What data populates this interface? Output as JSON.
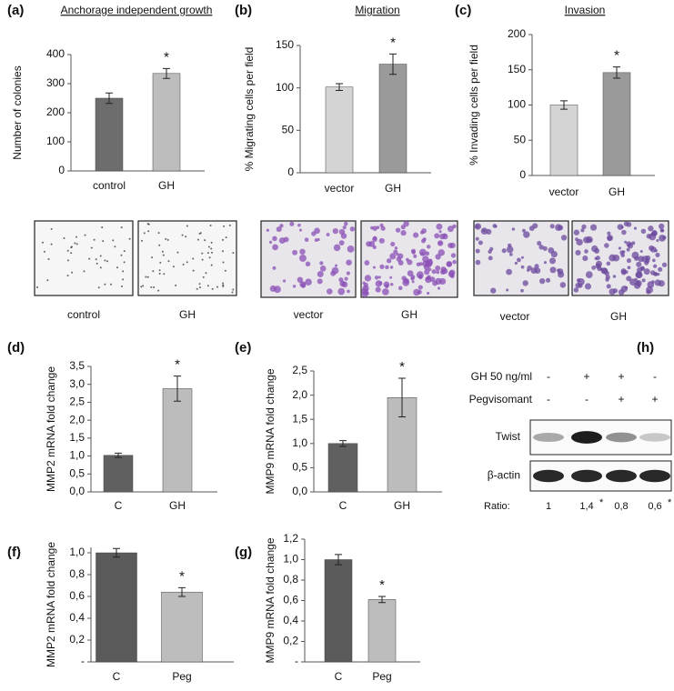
{
  "chart_data": [
    {
      "type": "bar",
      "panel": "(a)",
      "title": "Anchorage independent growth",
      "ylabel": "Number of colonies",
      "categories": [
        "control",
        "GH"
      ],
      "values": [
        250,
        335
      ],
      "errors": [
        18,
        17
      ],
      "colors": [
        "#6d6d6d",
        "#bdbdbd"
      ],
      "ylim": [
        0,
        400
      ],
      "yticks": [
        0,
        100,
        200,
        300,
        400
      ],
      "annotation": "*"
    },
    {
      "type": "bar",
      "panel": "(b)",
      "title": "Migration",
      "ylabel": "% Migrating cells per field",
      "categories": [
        "vector",
        "GH"
      ],
      "values": [
        101,
        128
      ],
      "errors": [
        4,
        12
      ],
      "colors": [
        "#d4d4d4",
        "#9a9a9a"
      ],
      "ylim": [
        0,
        150
      ],
      "yticks": [
        0,
        50,
        100,
        150
      ],
      "annotation": "*"
    },
    {
      "type": "bar",
      "panel": "(c)",
      "title": "Invasion",
      "ylabel": "% Invading cells per field",
      "categories": [
        "vector",
        "GH"
      ],
      "values": [
        100,
        146
      ],
      "errors": [
        6,
        8
      ],
      "colors": [
        "#d4d4d4",
        "#9a9a9a"
      ],
      "ylim": [
        0,
        200
      ],
      "yticks": [
        0,
        50,
        100,
        150,
        200
      ],
      "annotation": "*"
    },
    {
      "type": "bar",
      "panel": "(d)",
      "ylabel": "MMP2 mRNA fold change",
      "categories": [
        "C",
        "GH"
      ],
      "values": [
        1.02,
        2.88
      ],
      "errors": [
        0.06,
        0.35
      ],
      "colors": [
        "#606060",
        "#bcbcbc"
      ],
      "ylim": [
        0,
        3.5
      ],
      "yticks": [
        {
          "value": 0,
          "label": "0,0"
        },
        {
          "value": 0.5,
          "label": "0,5"
        },
        {
          "value": 1,
          "label": "1,0"
        },
        {
          "value": 1.5,
          "label": "1,5"
        },
        {
          "value": 2,
          "label": "2,0"
        },
        {
          "value": 2.5,
          "label": "2,5"
        },
        {
          "value": 3,
          "label": "3,0"
        },
        {
          "value": 3.5,
          "label": "3,5"
        }
      ],
      "annotation": "*"
    },
    {
      "type": "bar",
      "panel": "(e)",
      "ylabel": "MMP9 mRNA fold change",
      "categories": [
        "C",
        "GH"
      ],
      "values": [
        1.0,
        1.95
      ],
      "errors": [
        0.06,
        0.4
      ],
      "colors": [
        "#606060",
        "#bcbcbc"
      ],
      "ylim": [
        0,
        2.5
      ],
      "yticks": [
        {
          "value": 0,
          "label": "0,0"
        },
        {
          "value": 0.5,
          "label": "0,5"
        },
        {
          "value": 1,
          "label": "1,0"
        },
        {
          "value": 1.5,
          "label": "1,5"
        },
        {
          "value": 2,
          "label": "2,0"
        },
        {
          "value": 2.5,
          "label": "2,5"
        }
      ],
      "annotation": "*"
    },
    {
      "type": "bar",
      "panel": "(f)",
      "ylabel": "MMP2 mRNA fold change",
      "categories": [
        "C",
        "Peg"
      ],
      "values": [
        1.0,
        0.64
      ],
      "errors": [
        0.04,
        0.04
      ],
      "colors": [
        "#5a5a5a",
        "#bdbdbd"
      ],
      "ylim": [
        0,
        1.05
      ],
      "yticks": [
        {
          "value": 0,
          "label": "-"
        },
        {
          "value": 0.2,
          "label": "0,2"
        },
        {
          "value": 0.4,
          "label": "0,4"
        },
        {
          "value": 0.6,
          "label": "0,6"
        },
        {
          "value": 0.8,
          "label": "0,8"
        },
        {
          "value": 1,
          "label": "1,0"
        }
      ],
      "annotation": "*"
    },
    {
      "type": "bar",
      "panel": "(g)",
      "ylabel": "MMP9 mRNA fold change",
      "categories": [
        "C",
        "Peg"
      ],
      "values": [
        1.0,
        0.61
      ],
      "errors": [
        0.05,
        0.03
      ],
      "colors": [
        "#5a5a5a",
        "#bdbdbd"
      ],
      "ylim": [
        0,
        1.2
      ],
      "yticks": [
        {
          "value": 0,
          "label": "-"
        },
        {
          "value": 0.2,
          "label": "0,2"
        },
        {
          "value": 0.4,
          "label": "0,4"
        },
        {
          "value": 0.6,
          "label": "0,6"
        },
        {
          "value": 0.8,
          "label": "0,8"
        },
        {
          "value": 1,
          "label": "1,0"
        },
        {
          "value": 1.2,
          "label": "1,2"
        }
      ],
      "annotation": "*"
    }
  ],
  "images": [
    {
      "label": "control"
    },
    {
      "label": "GH"
    },
    {
      "label": "vector"
    },
    {
      "label": "GH"
    },
    {
      "label": "vector"
    },
    {
      "label": "GH"
    }
  ],
  "blot": {
    "panel": "(h)",
    "rows": [
      {
        "label": "GH 50 ng/ml",
        "signs": [
          "-",
          "+",
          "+",
          "-"
        ]
      },
      {
        "label": "Pegvisomant",
        "signs": [
          "-",
          "-",
          "+",
          "+"
        ]
      }
    ],
    "bands": [
      "Twist",
      "β-actin"
    ],
    "ratio_label": "Ratio:",
    "ratios": [
      "1",
      "1,4",
      "0,8",
      "0,6"
    ],
    "ratio_marks": [
      null,
      "*",
      null,
      "*"
    ]
  }
}
